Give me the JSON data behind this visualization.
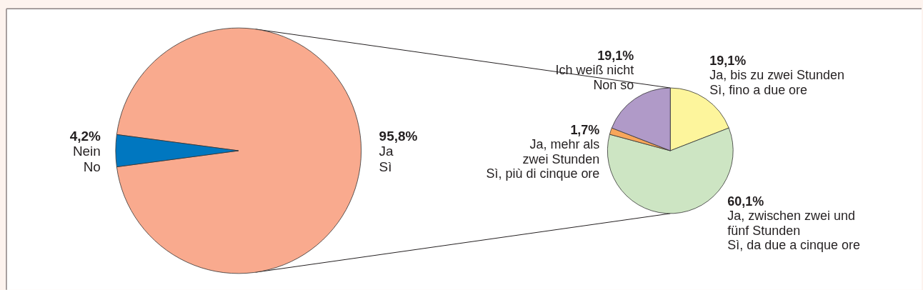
{
  "chart_data": [
    {
      "type": "pie",
      "categories": [
        "Ja\nSì",
        "Nein\nNo"
      ],
      "values": [
        95.8,
        4.2
      ],
      "value_labels": [
        "95,8%",
        "4,2%"
      ],
      "colors": [
        "#f9aa8e",
        "#0077c0"
      ]
    },
    {
      "type": "pie",
      "categories": [
        "Ja, bis zu zwei Stunden\nSì, fino a due ore",
        "Ja, zwischen zwei und\nfünf Stunden\nSì, da due a cinque ore",
        "Ja, mehr als\nzwei Stunden\nSì, più di cinque ore",
        "Ich weiß nicht\nNon so"
      ],
      "values": [
        19.1,
        60.1,
        1.7,
        19.1
      ],
      "value_labels": [
        "19,1%",
        "60,1%",
        "1,7%",
        "19,1%"
      ],
      "colors": [
        "#fdf59c",
        "#cde5c3",
        "#f8a65a",
        "#b09ac8"
      ]
    }
  ]
}
